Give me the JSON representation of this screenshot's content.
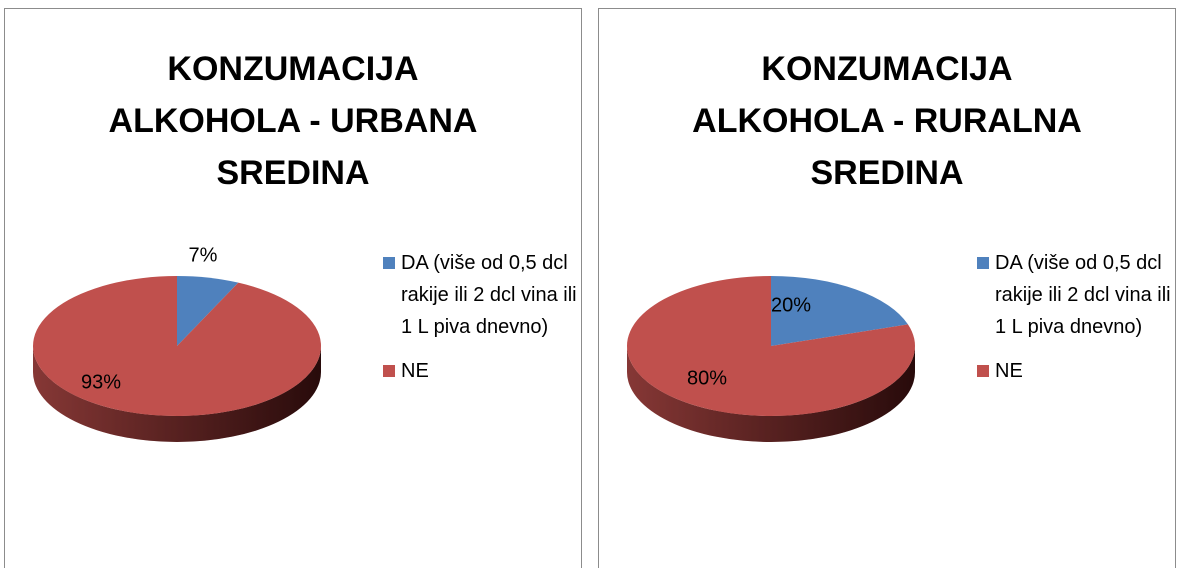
{
  "chart_data": [
    {
      "type": "pie3d",
      "title": "KONZUMACIJA ALKOHOLA - URBANA SREDINA",
      "categories": [
        "DA (više od 0,5 dcl rakije ili 2 dcl vina ili 1 L piva dnevno)",
        "NE"
      ],
      "values": [
        7,
        93
      ],
      "value_labels": [
        "7%",
        "93%"
      ],
      "colors": [
        "#4f81bd",
        "#c0504d"
      ]
    },
    {
      "type": "pie3d",
      "title": "KONZUMACIJA ALKOHOLA - RURALNA SREDINA",
      "categories": [
        "DA (više od 0,5 dcl rakije ili 2 dcl vina ili 1 L piva dnevno)",
        "NE"
      ],
      "values": [
        20,
        80
      ],
      "value_labels": [
        "20%",
        "80%"
      ],
      "colors": [
        "#4f81bd",
        "#c0504d"
      ]
    }
  ]
}
